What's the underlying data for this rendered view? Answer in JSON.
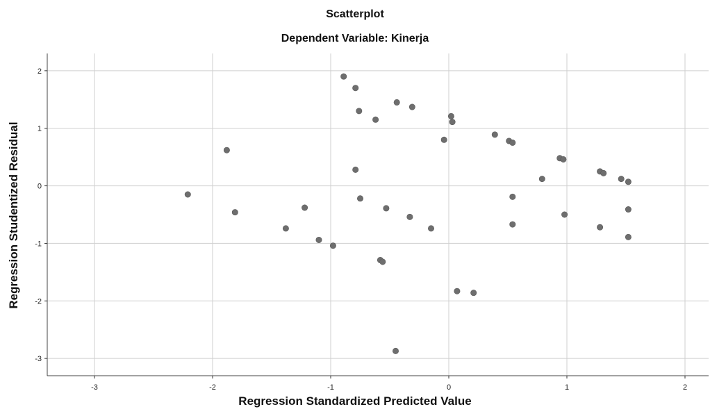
{
  "chart_data": {
    "type": "scatter",
    "title": "Scatterplot",
    "subtitle": "Dependent Variable: Kinerja",
    "xlabel": "Regression Standardized Predicted Value",
    "ylabel": "Regression Studentized Residual",
    "xlim": [
      -3.4,
      2.2
    ],
    "ylim": [
      -3.3,
      2.3
    ],
    "x_ticks": [
      "-3",
      "-2",
      "-1",
      "0",
      "1",
      "2"
    ],
    "y_ticks": [
      "2",
      "1",
      "0",
      "-1",
      "-2",
      "-3"
    ],
    "grid": true,
    "point_color": "#6e6e6e",
    "points": [
      {
        "x": -0.89,
        "y": 1.9
      },
      {
        "x": -0.79,
        "y": 1.7
      },
      {
        "x": -0.76,
        "y": 1.3
      },
      {
        "x": -0.44,
        "y": 1.45
      },
      {
        "x": -0.31,
        "y": 1.37
      },
      {
        "x": -0.62,
        "y": 1.15
      },
      {
        "x": 0.02,
        "y": 1.21
      },
      {
        "x": 0.03,
        "y": 1.11
      },
      {
        "x": -0.04,
        "y": 0.8
      },
      {
        "x": 0.39,
        "y": 0.89
      },
      {
        "x": 0.51,
        "y": 0.78
      },
      {
        "x": 0.54,
        "y": 0.75
      },
      {
        "x": 0.94,
        "y": 0.48
      },
      {
        "x": 0.97,
        "y": 0.46
      },
      {
        "x": 1.28,
        "y": 0.25
      },
      {
        "x": 1.31,
        "y": 0.22
      },
      {
        "x": 1.46,
        "y": 0.12
      },
      {
        "x": 1.52,
        "y": 0.07
      },
      {
        "x": 0.79,
        "y": 0.12
      },
      {
        "x": -1.88,
        "y": 0.62
      },
      {
        "x": -0.79,
        "y": 0.28
      },
      {
        "x": -2.21,
        "y": -0.15
      },
      {
        "x": -1.81,
        "y": -0.46
      },
      {
        "x": -1.22,
        "y": -0.38
      },
      {
        "x": -0.75,
        "y": -0.22
      },
      {
        "x": -0.53,
        "y": -0.39
      },
      {
        "x": 0.54,
        "y": -0.19
      },
      {
        "x": 1.52,
        "y": -0.41
      },
      {
        "x": -1.38,
        "y": -0.74
      },
      {
        "x": -1.1,
        "y": -0.94
      },
      {
        "x": -0.98,
        "y": -1.04
      },
      {
        "x": -0.33,
        "y": -0.54
      },
      {
        "x": -0.15,
        "y": -0.74
      },
      {
        "x": 0.54,
        "y": -0.67
      },
      {
        "x": 0.98,
        "y": -0.5
      },
      {
        "x": 1.28,
        "y": -0.72
      },
      {
        "x": 1.52,
        "y": -0.89
      },
      {
        "x": -0.58,
        "y": -1.29
      },
      {
        "x": -0.56,
        "y": -1.32
      },
      {
        "x": 0.07,
        "y": -1.83
      },
      {
        "x": 0.21,
        "y": -1.86
      },
      {
        "x": -0.45,
        "y": -2.87
      }
    ]
  }
}
